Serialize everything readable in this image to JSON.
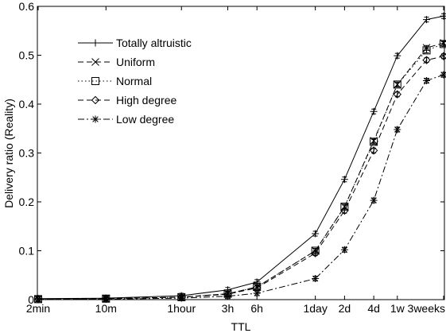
{
  "chart_data": {
    "type": "line",
    "xlabel": "TTL",
    "ylabel": "Delivery ratio (Reality)",
    "ylim": [
      0,
      0.6
    ],
    "yticks": [
      "0",
      "0.1",
      "0.2",
      "0.3",
      "0.4",
      "0.5",
      "0.6"
    ],
    "x_tick_labels": [
      "2min",
      "10m",
      "1hour",
      "3h",
      "6h",
      "1day",
      "2d",
      "4d",
      "1w",
      "3weeks"
    ],
    "x_tick_seconds": [
      120,
      600,
      3600,
      10800,
      21600,
      86400,
      172800,
      345600,
      604800,
      1814400
    ],
    "x_scale": "log",
    "x": [
      "2min",
      "10m",
      "1hour",
      "3h",
      "6h",
      "1day",
      "2d",
      "4d",
      "1w",
      "2weeks",
      "3weeks"
    ],
    "x_seconds": [
      120,
      600,
      3600,
      10800,
      21600,
      86400,
      172800,
      345600,
      604800,
      1209600,
      1814400
    ],
    "legend_position": "top-left",
    "grid": false,
    "series": [
      {
        "name": "Totally altruistic",
        "line": "solid",
        "marker": "plus",
        "values": [
          0.002,
          0.003,
          0.008,
          0.02,
          0.036,
          0.135,
          0.246,
          0.385,
          0.499,
          0.573,
          0.58
        ]
      },
      {
        "name": "Uniform",
        "line": "dashed",
        "marker": "x",
        "values": [
          0.001,
          0.002,
          0.005,
          0.012,
          0.026,
          0.1,
          0.19,
          0.325,
          0.44,
          0.515,
          0.525
        ]
      },
      {
        "name": "Normal",
        "line": "dotted",
        "marker": "square",
        "values": [
          0.001,
          0.002,
          0.005,
          0.012,
          0.026,
          0.1,
          0.19,
          0.323,
          0.44,
          0.51,
          0.523
        ]
      },
      {
        "name": "High degree",
        "line": "dashed",
        "marker": "diamond",
        "values": [
          0.001,
          0.002,
          0.005,
          0.011,
          0.024,
          0.095,
          0.182,
          0.305,
          0.42,
          0.49,
          0.498
        ]
      },
      {
        "name": "Low degree",
        "line": "dashdot",
        "marker": "star",
        "values": [
          0.0005,
          0.001,
          0.003,
          0.007,
          0.013,
          0.043,
          0.102,
          0.203,
          0.348,
          0.448,
          0.46
        ]
      }
    ]
  }
}
